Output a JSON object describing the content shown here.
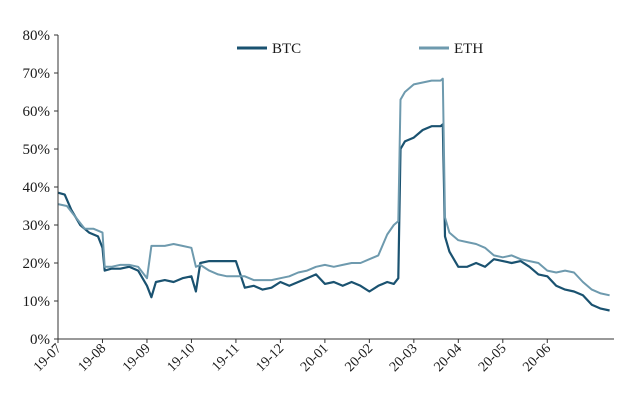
{
  "chart_data": {
    "type": "line",
    "title": "",
    "xlabel": "",
    "ylabel": "",
    "ylim": [
      0,
      80
    ],
    "y_ticks": [
      "0%",
      "10%",
      "20%",
      "30%",
      "40%",
      "50%",
      "60%",
      "70%",
      "80%"
    ],
    "categories": [
      "19-07",
      "19-08",
      "19-09",
      "19-10",
      "19-11",
      "19-12",
      "20-01",
      "20-02",
      "20-03",
      "20-04",
      "20-05",
      "20-06"
    ],
    "x_range": [
      0,
      12.5
    ],
    "grid": false,
    "legend": "top-center",
    "series": [
      {
        "name": "BTC",
        "color": "#1a5270",
        "x": [
          0,
          0.15,
          0.3,
          0.5,
          0.7,
          0.9,
          1.0,
          1.05,
          1.2,
          1.4,
          1.6,
          1.8,
          2.0,
          2.1,
          2.2,
          2.4,
          2.6,
          2.8,
          3.0,
          3.1,
          3.2,
          3.4,
          3.6,
          3.8,
          4.0,
          4.2,
          4.4,
          4.6,
          4.8,
          5.0,
          5.2,
          5.4,
          5.6,
          5.8,
          6.0,
          6.2,
          6.4,
          6.6,
          6.8,
          7.0,
          7.2,
          7.4,
          7.55,
          7.65,
          7.7,
          7.8,
          8.0,
          8.2,
          8.4,
          8.6,
          8.65,
          8.7,
          8.8,
          9.0,
          9.2,
          9.4,
          9.6,
          9.8,
          10.0,
          10.2,
          10.4,
          10.6,
          10.8,
          11.0,
          11.2,
          11.4,
          11.6,
          11.8,
          12.0,
          12.2,
          12.4
        ],
        "values": [
          38.5,
          38,
          34,
          30,
          28,
          27,
          24,
          18,
          18.5,
          18.5,
          19,
          18,
          14,
          11,
          15,
          15.5,
          15,
          16,
          16.5,
          12.5,
          20,
          20.5,
          20.5,
          20.5,
          20.5,
          13.5,
          14,
          13,
          13.5,
          15,
          14,
          15,
          16,
          17,
          14.5,
          15,
          14,
          15,
          14,
          12.5,
          14,
          15,
          14.5,
          16,
          50,
          52,
          53,
          55,
          56,
          56,
          56.5,
          27,
          23,
          19,
          19,
          20,
          19,
          21,
          20.5,
          20,
          20.5,
          19,
          17,
          16.5,
          14,
          13,
          12.5,
          11.5,
          9,
          8,
          7.5
        ]
      },
      {
        "name": "ETH",
        "color": "#6e9aae",
        "x": [
          0,
          0.2,
          0.4,
          0.6,
          0.8,
          1.0,
          1.05,
          1.2,
          1.4,
          1.6,
          1.8,
          2.0,
          2.1,
          2.2,
          2.4,
          2.6,
          2.8,
          3.0,
          3.1,
          3.2,
          3.4,
          3.6,
          3.8,
          4.0,
          4.2,
          4.4,
          4.6,
          4.8,
          5.0,
          5.2,
          5.4,
          5.6,
          5.8,
          6.0,
          6.2,
          6.4,
          6.6,
          6.8,
          7.0,
          7.2,
          7.4,
          7.55,
          7.65,
          7.7,
          7.8,
          8.0,
          8.2,
          8.4,
          8.6,
          8.65,
          8.7,
          8.8,
          9.0,
          9.2,
          9.4,
          9.6,
          9.8,
          10.0,
          10.2,
          10.4,
          10.6,
          10.8,
          11.0,
          11.2,
          11.4,
          11.6,
          11.8,
          12.0,
          12.2,
          12.4
        ],
        "values": [
          35.5,
          35,
          32,
          29,
          29,
          28,
          19,
          19,
          19.5,
          19.5,
          19,
          16,
          24.5,
          24.5,
          24.5,
          25,
          24.5,
          24,
          19,
          19.5,
          18,
          17,
          16.5,
          16.5,
          16.5,
          15.5,
          15.5,
          15.5,
          16,
          16.5,
          17.5,
          18,
          19,
          19.5,
          19,
          19.5,
          20,
          20,
          21,
          22,
          27.5,
          30,
          31,
          63,
          65,
          67,
          67.5,
          68,
          68,
          68.5,
          32,
          28,
          26,
          25.5,
          25,
          24,
          22,
          21.5,
          22,
          21,
          20.5,
          20,
          18,
          17.5,
          18,
          17.5,
          15,
          13,
          12,
          11.5
        ]
      }
    ]
  }
}
